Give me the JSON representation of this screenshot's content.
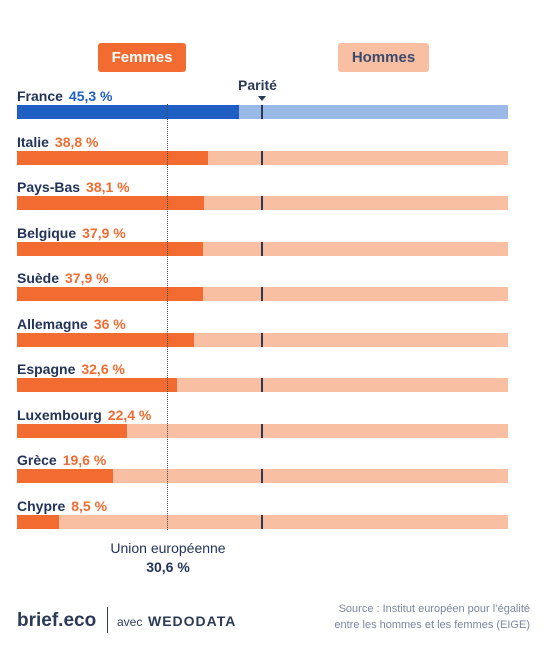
{
  "legend": {
    "women": "Femmes",
    "men": "Hommes"
  },
  "parity_label": "Parité",
  "eu": {
    "label": "Union européenne",
    "value_text": "30,6 %"
  },
  "footer": {
    "brand": "brief.eco",
    "with": "avec",
    "partner": "WEDODATA",
    "source_line1": "Source : Institut européen pour l’égalité",
    "source_line2": "entre les hommes et les femmes (EIGE)"
  },
  "colors": {
    "women": "#f26c32",
    "men": "#f9bfa3",
    "highlight": "#1f5fc4",
    "highlight_light": "#9bb9e6",
    "navy": "#22335a"
  },
  "chart_data": {
    "type": "bar",
    "orientation": "horizontal",
    "stacked_100": true,
    "xlim": [
      0,
      100
    ],
    "reference_lines": [
      {
        "name": "Parité",
        "value": 50
      },
      {
        "name": "Union européenne",
        "value": 30.6
      }
    ],
    "highlight_category": "France",
    "series": [
      {
        "name": "Femmes",
        "unit": "%"
      },
      {
        "name": "Hommes",
        "unit": "%"
      }
    ],
    "rows": [
      {
        "label": "France",
        "value": 45.3,
        "value_text": "45,3 %"
      },
      {
        "label": "Italie",
        "value": 38.8,
        "value_text": "38,8 %"
      },
      {
        "label": "Pays-Bas",
        "value": 38.1,
        "value_text": "38,1 %"
      },
      {
        "label": "Belgique",
        "value": 37.9,
        "value_text": "37,9 %"
      },
      {
        "label": "Suède",
        "value": 37.9,
        "value_text": "37,9 %"
      },
      {
        "label": "Allemagne",
        "value": 36,
        "value_text": "36 %"
      },
      {
        "label": "Espagne",
        "value": 32.6,
        "value_text": "32,6 %"
      },
      {
        "label": "Luxembourg",
        "value": 22.4,
        "value_text": "22,4 %"
      },
      {
        "label": "Grèce",
        "value": 19.6,
        "value_text": "19,6 %"
      },
      {
        "label": "Chypre",
        "value": 8.5,
        "value_text": "8,5 %"
      }
    ]
  }
}
